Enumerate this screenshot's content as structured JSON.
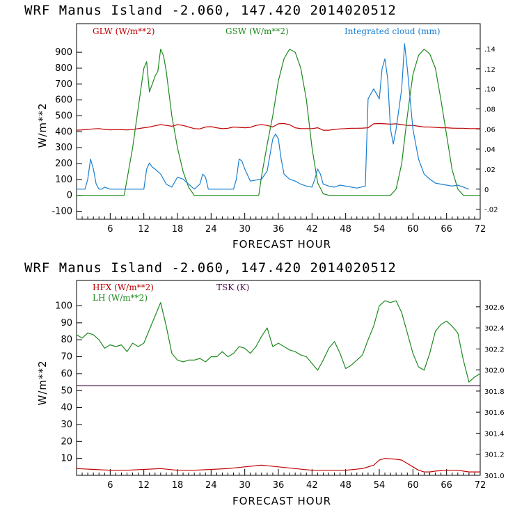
{
  "colors": {
    "red": "#c00000",
    "green": "#1e8a1e",
    "blue": "#1a7fd0",
    "purple": "#4b0a4b",
    "axis": "#000000"
  },
  "chart_data": [
    {
      "type": "line",
      "title": "WRF   Manus Island   -2.060, 147.420   2014020512",
      "xlabel": "FORECAST HOUR",
      "ylabel": "W/m**2",
      "xlim": [
        0,
        72
      ],
      "ylim": [
        -150,
        1080
      ],
      "y2lim": [
        -0.03,
        0.165
      ],
      "x_ticks": [
        6,
        12,
        18,
        24,
        30,
        36,
        42,
        48,
        54,
        60,
        66,
        72
      ],
      "y_ticks": [
        -100,
        0,
        100,
        200,
        300,
        400,
        500,
        600,
        700,
        800,
        900
      ],
      "y2_ticks": [
        -0.02,
        0,
        0.02,
        0.04,
        0.06,
        0.08,
        0.1,
        0.12,
        0.14
      ],
      "y2_tick_labels": [
        "-.02",
        "0",
        ".02",
        ".04",
        ".06",
        ".08",
        ".10",
        ".12",
        ".14"
      ],
      "legend": [
        {
          "label": "GLW (W/m**2)",
          "color": "#c00000"
        },
        {
          "label": "GSW (W/m**2)",
          "color": "#1e8a1e"
        },
        {
          "label": "Integrated cloud (mm)",
          "color": "#1a7fd0"
        }
      ],
      "series": [
        {
          "name": "GLW (W/m**2)",
          "color": "#c00000",
          "axis": "left",
          "x": [
            0,
            1,
            2,
            3,
            4,
            5,
            6,
            7,
            8,
            9,
            10,
            11,
            12,
            13,
            14,
            15,
            16,
            17,
            18,
            19,
            20,
            21,
            22,
            23,
            24,
            25,
            26,
            27,
            28,
            29,
            30,
            31,
            32,
            33,
            34,
            35,
            36,
            37,
            38,
            39,
            40,
            41,
            42,
            43,
            44,
            45,
            46,
            47,
            48,
            49,
            50,
            51,
            52,
            53,
            54,
            55,
            56,
            57,
            58,
            59,
            60,
            61,
            62,
            63,
            64,
            65,
            66,
            67,
            68,
            69,
            70,
            71,
            72
          ],
          "y": [
            410,
            412,
            415,
            418,
            420,
            415,
            412,
            414,
            413,
            412,
            414,
            420,
            425,
            430,
            438,
            445,
            440,
            435,
            445,
            440,
            430,
            420,
            418,
            430,
            432,
            425,
            420,
            422,
            430,
            428,
            425,
            428,
            440,
            445,
            440,
            430,
            450,
            452,
            445,
            425,
            420,
            420,
            420,
            425,
            410,
            410,
            415,
            418,
            420,
            422,
            422,
            423,
            425,
            450,
            452,
            450,
            448,
            450,
            445,
            440,
            440,
            435,
            430,
            430,
            428,
            425,
            425,
            423,
            422,
            422,
            420,
            420,
            420
          ]
        },
        {
          "name": "GSW (W/m**2)",
          "color": "#1e8a1e",
          "axis": "left",
          "x": [
            0,
            8.5,
            9,
            10,
            11,
            12,
            12.5,
            13,
            13.5,
            14,
            14.5,
            15,
            15.5,
            16,
            17,
            18,
            19,
            20,
            21,
            32.5,
            33,
            34,
            35,
            36,
            37,
            38,
            39,
            40,
            41,
            42,
            43,
            44,
            45,
            56,
            57,
            58,
            59,
            60,
            61,
            62,
            63,
            64,
            65,
            66,
            67,
            68,
            69,
            72
          ],
          "y": [
            0,
            0,
            100,
            300,
            550,
            800,
            840,
            650,
            700,
            750,
            780,
            920,
            880,
            780,
            500,
            300,
            150,
            50,
            0,
            0,
            120,
            320,
            500,
            720,
            860,
            920,
            900,
            800,
            600,
            300,
            80,
            10,
            0,
            0,
            40,
            200,
            500,
            760,
            880,
            920,
            890,
            800,
            600,
            380,
            160,
            40,
            0,
            0
          ]
        },
        {
          "name": "Integrated cloud (mm)",
          "color": "#1a7fd0",
          "axis": "right",
          "x": [
            0,
            1.5,
            2,
            2.5,
            3,
            3.5,
            4,
            4.5,
            5,
            6,
            12,
            12.5,
            13,
            13.5,
            14,
            15,
            16,
            17,
            18,
            19,
            21,
            22,
            22.5,
            23,
            23.5,
            28,
            28.5,
            29,
            29.5,
            30,
            31,
            33,
            34,
            35,
            35.5,
            36,
            36.5,
            37,
            38,
            39,
            40,
            41,
            42,
            42.5,
            43,
            43.5,
            44,
            45,
            46,
            47,
            48,
            50,
            51.5,
            52,
            53,
            54,
            54.5,
            55,
            55.5,
            56,
            56.5,
            57,
            57.5,
            58,
            58.5,
            59,
            60,
            61,
            62,
            63,
            64,
            65,
            66,
            67,
            68,
            69,
            70
          ],
          "y": [
            0,
            0,
            0.01,
            0.03,
            0.02,
            0.005,
            0,
            0,
            0.002,
            0,
            0,
            0.02,
            0.026,
            0.022,
            0.02,
            0.015,
            0.005,
            0.002,
            0.012,
            0.01,
            0,
            0.005,
            0.015,
            0.012,
            0,
            0,
            0.01,
            0.03,
            0.028,
            0.02,
            0.008,
            0.01,
            0.018,
            0.05,
            0.055,
            0.05,
            0.03,
            0.015,
            0.01,
            0.008,
            0.005,
            0.003,
            0.002,
            0.01,
            0.02,
            0.015,
            0.005,
            0.003,
            0.002,
            0.004,
            0.003,
            0.001,
            0.003,
            0.09,
            0.1,
            0.09,
            0.12,
            0.13,
            0.11,
            0.06,
            0.045,
            0.06,
            0.08,
            0.1,
            0.145,
            0.12,
            0.06,
            0.03,
            0.015,
            0.01,
            0.006,
            0.005,
            0.004,
            0.003,
            0.004,
            0.002,
            0
          ]
        }
      ]
    },
    {
      "type": "line",
      "title": "WRF   Manus Island   -2.060, 147.420   2014020512",
      "xlabel": "FORECAST HOUR",
      "ylabel": "W/m**2",
      "xlim": [
        0,
        72
      ],
      "ylim": [
        0,
        115
      ],
      "y2lim": [
        301.0,
        302.85
      ],
      "x_ticks": [
        6,
        12,
        18,
        24,
        30,
        36,
        42,
        48,
        54,
        60,
        66,
        72
      ],
      "y_ticks": [
        10,
        20,
        30,
        40,
        50,
        60,
        70,
        80,
        90,
        100
      ],
      "y2_ticks": [
        301.0,
        301.2,
        301.4,
        301.6,
        301.8,
        302.0,
        302.2,
        302.4,
        302.6
      ],
      "y2_tick_labels": [
        "301.0",
        "301.2",
        "301.4",
        "301.6",
        "301.8",
        "302.0",
        "302.2",
        "302.4",
        "302.6"
      ],
      "legend": [
        {
          "label": "HFX (W/m**2)",
          "color": "#c00000"
        },
        {
          "label": "LH  (W/m**2)",
          "color": "#1e8a1e"
        },
        {
          "label": "TSK (K)",
          "color": "#4b0a4b"
        }
      ],
      "series": [
        {
          "name": "HFX (W/m**2)",
          "color": "#c00000",
          "axis": "left",
          "x": [
            0,
            3,
            6,
            9,
            12,
            15,
            18,
            21,
            24,
            27,
            30,
            33,
            36,
            39,
            42,
            45,
            48,
            51,
            53,
            54,
            55,
            57,
            58,
            59,
            60,
            61,
            62,
            63,
            64,
            66,
            68,
            70,
            72
          ],
          "y": [
            4,
            3.5,
            3,
            3,
            3.5,
            4,
            3,
            3,
            3.5,
            4,
            5,
            6,
            5,
            4,
            3,
            3,
            3,
            4,
            6,
            9,
            10,
            9.5,
            9,
            7,
            5,
            3,
            2,
            2,
            2.5,
            3,
            3,
            2,
            2
          ]
        },
        {
          "name": "LH  (W/m**2)",
          "color": "#1e8a1e",
          "axis": "left",
          "x": [
            0,
            1,
            2,
            3,
            4,
            5,
            6,
            7,
            8,
            9,
            10,
            11,
            12,
            13,
            14,
            15,
            16,
            17,
            18,
            19,
            20,
            21,
            22,
            23,
            24,
            25,
            26,
            27,
            28,
            29,
            30,
            31,
            32,
            33,
            34,
            35,
            36,
            37,
            38,
            39,
            40,
            41,
            42,
            43,
            44,
            45,
            46,
            47,
            48,
            49,
            50,
            51,
            52,
            53,
            54,
            55,
            56,
            57,
            58,
            59,
            60,
            61,
            62,
            63,
            64,
            65,
            66,
            67,
            68,
            69,
            70,
            71,
            72
          ],
          "y": [
            83,
            81,
            84,
            83,
            80,
            75,
            77,
            76,
            77,
            73,
            78,
            76,
            78,
            86,
            94,
            102,
            88,
            72,
            68,
            67,
            68,
            68,
            69,
            67,
            70,
            70,
            73,
            70,
            72,
            76,
            75,
            72,
            76,
            82,
            87,
            76,
            78,
            76,
            74,
            73,
            71,
            70,
            66,
            62,
            68,
            75,
            79,
            72,
            63,
            65,
            68,
            71,
            80,
            88,
            100,
            103,
            102,
            103,
            96,
            84,
            72,
            64,
            62,
            72,
            85,
            89,
            91,
            88,
            84,
            68,
            55,
            58,
            60
          ]
        },
        {
          "name": "TSK (K)",
          "color": "#4b0a4b",
          "axis": "right",
          "x": [
            0,
            72
          ],
          "y": [
            301.85,
            301.85
          ]
        }
      ]
    }
  ]
}
